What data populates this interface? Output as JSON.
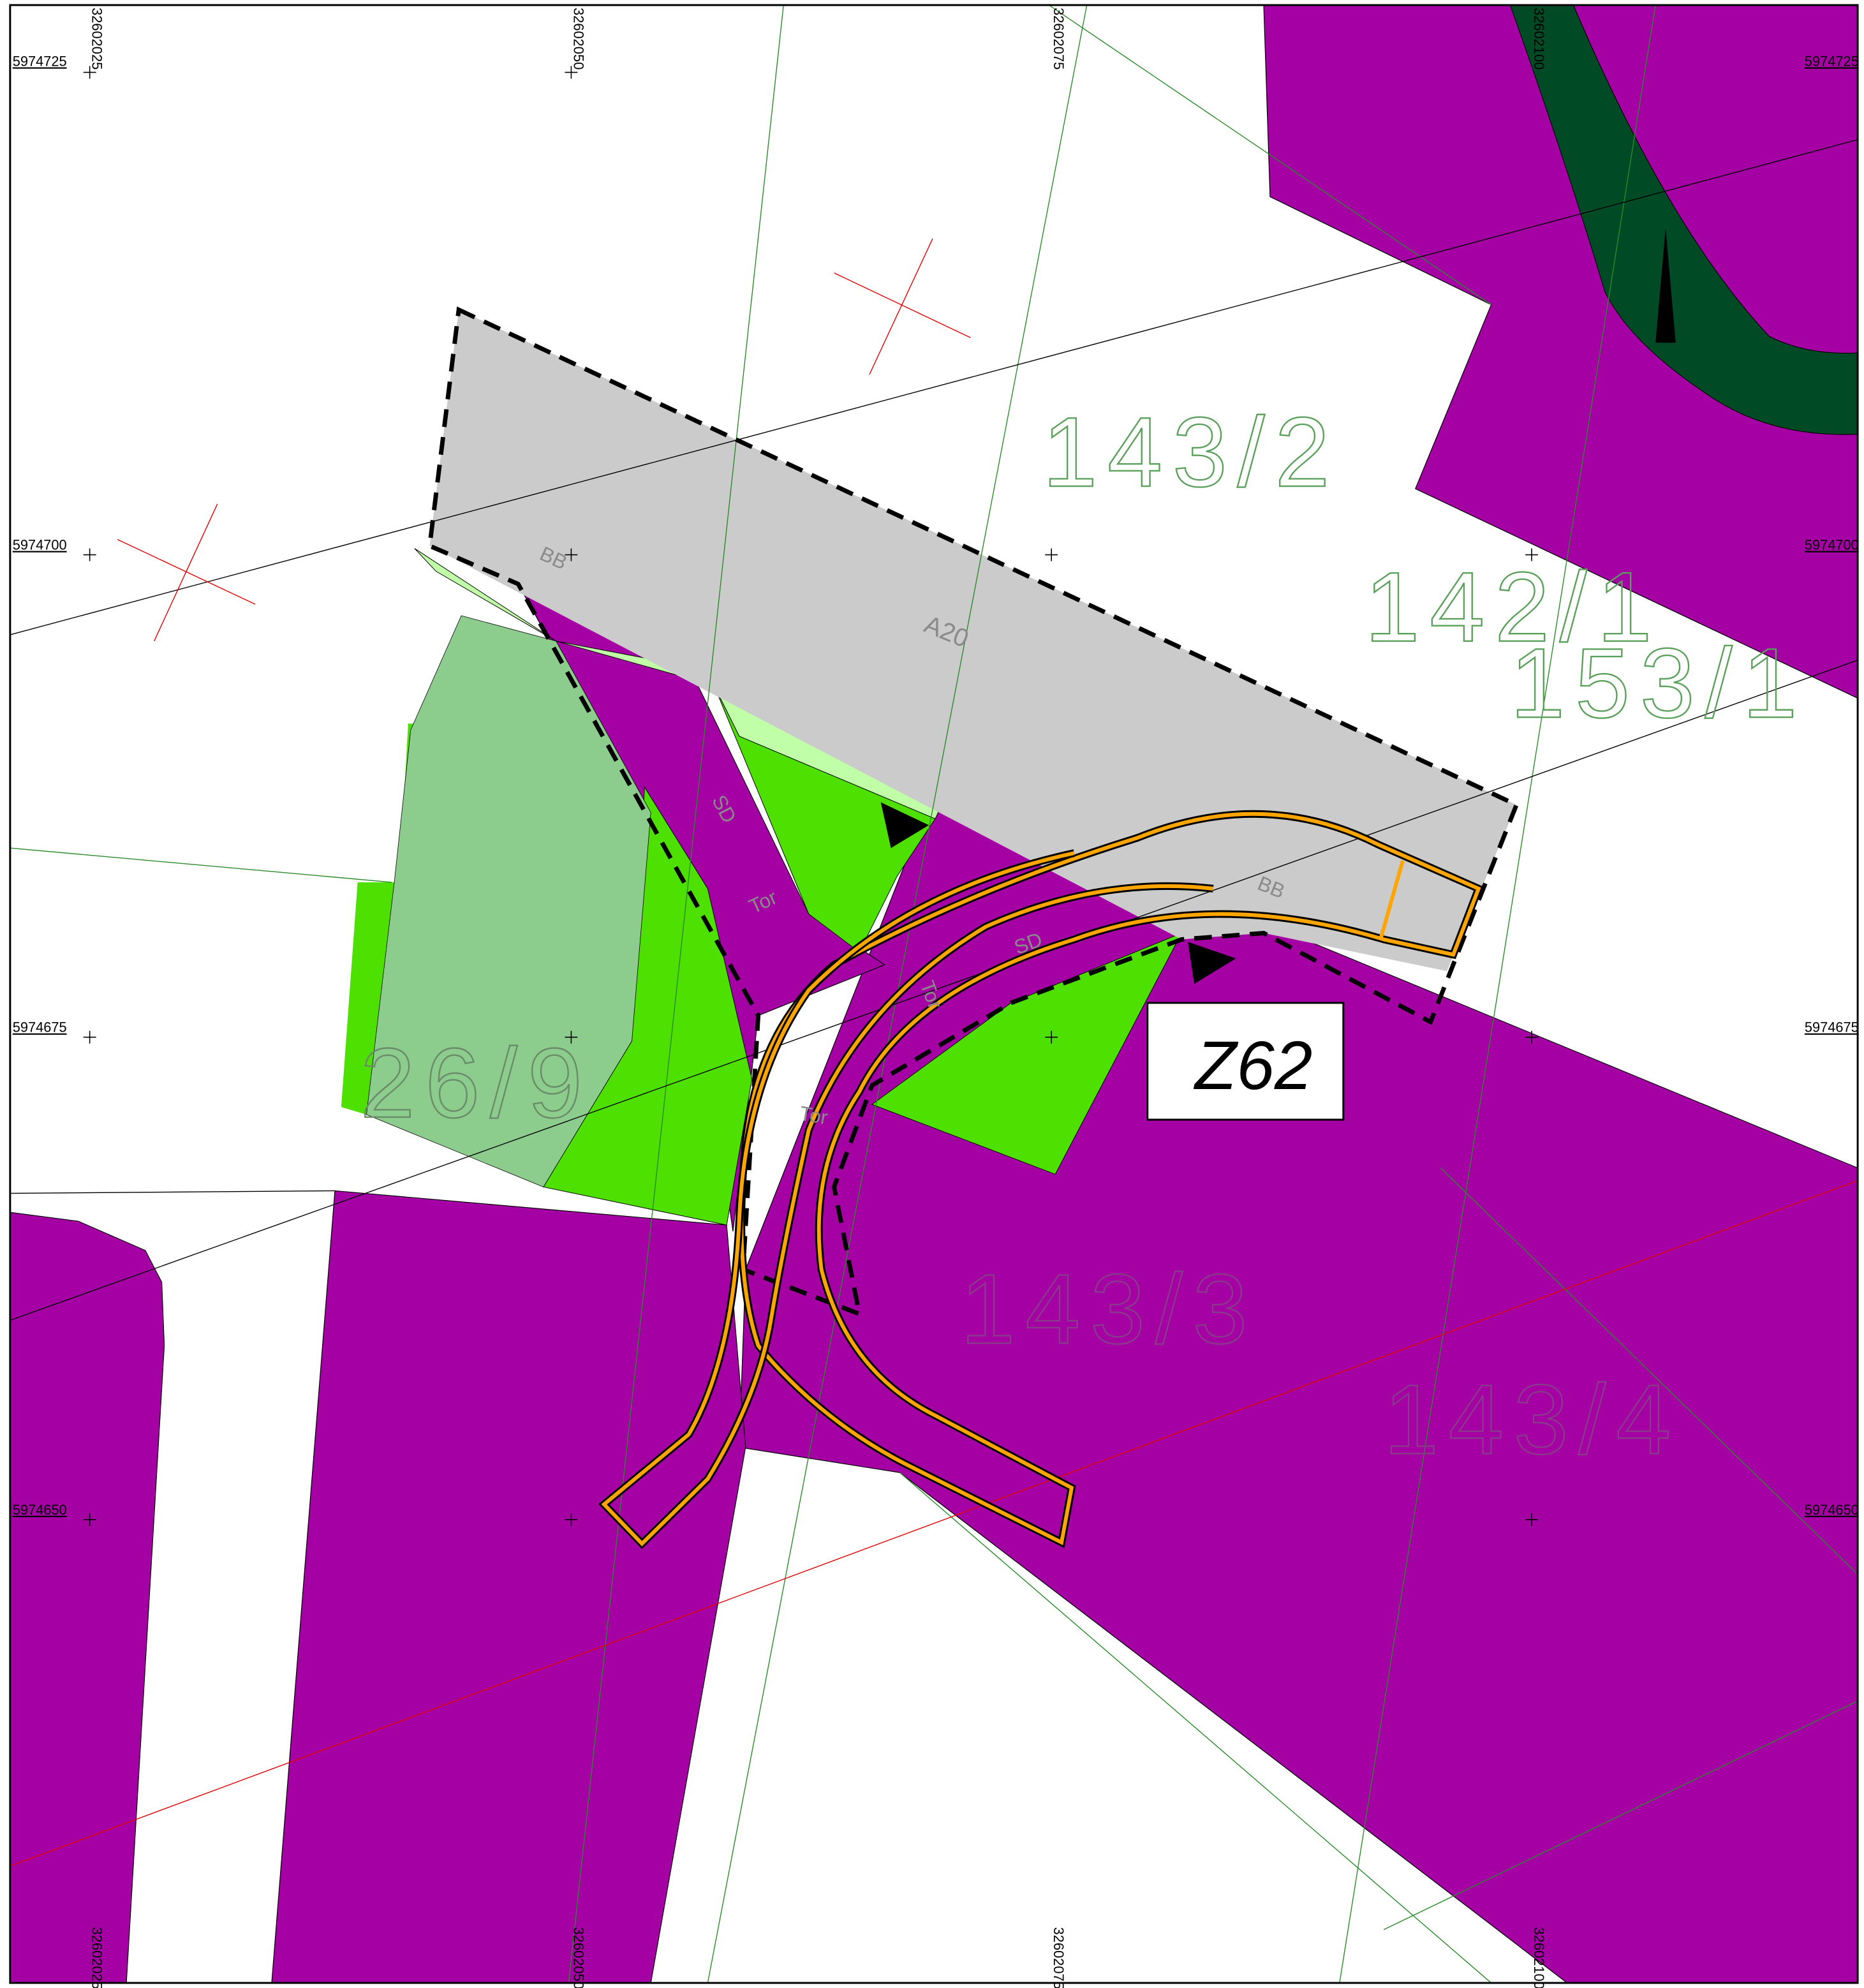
{
  "grid": {
    "x_labels": [
      "32602025",
      "32602050",
      "32602075",
      "32602100"
    ],
    "y_labels": [
      "5974725",
      "5974700",
      "5974675",
      "5974650"
    ]
  },
  "parcels": [
    "143/2",
    "142/1",
    "153/1",
    "26/9",
    "143/3",
    "143/4"
  ],
  "labels": [
    "BB",
    "A20",
    "SD",
    "Tor",
    "BB",
    "SD",
    "Tor",
    "Tor"
  ],
  "zone": "Z62"
}
